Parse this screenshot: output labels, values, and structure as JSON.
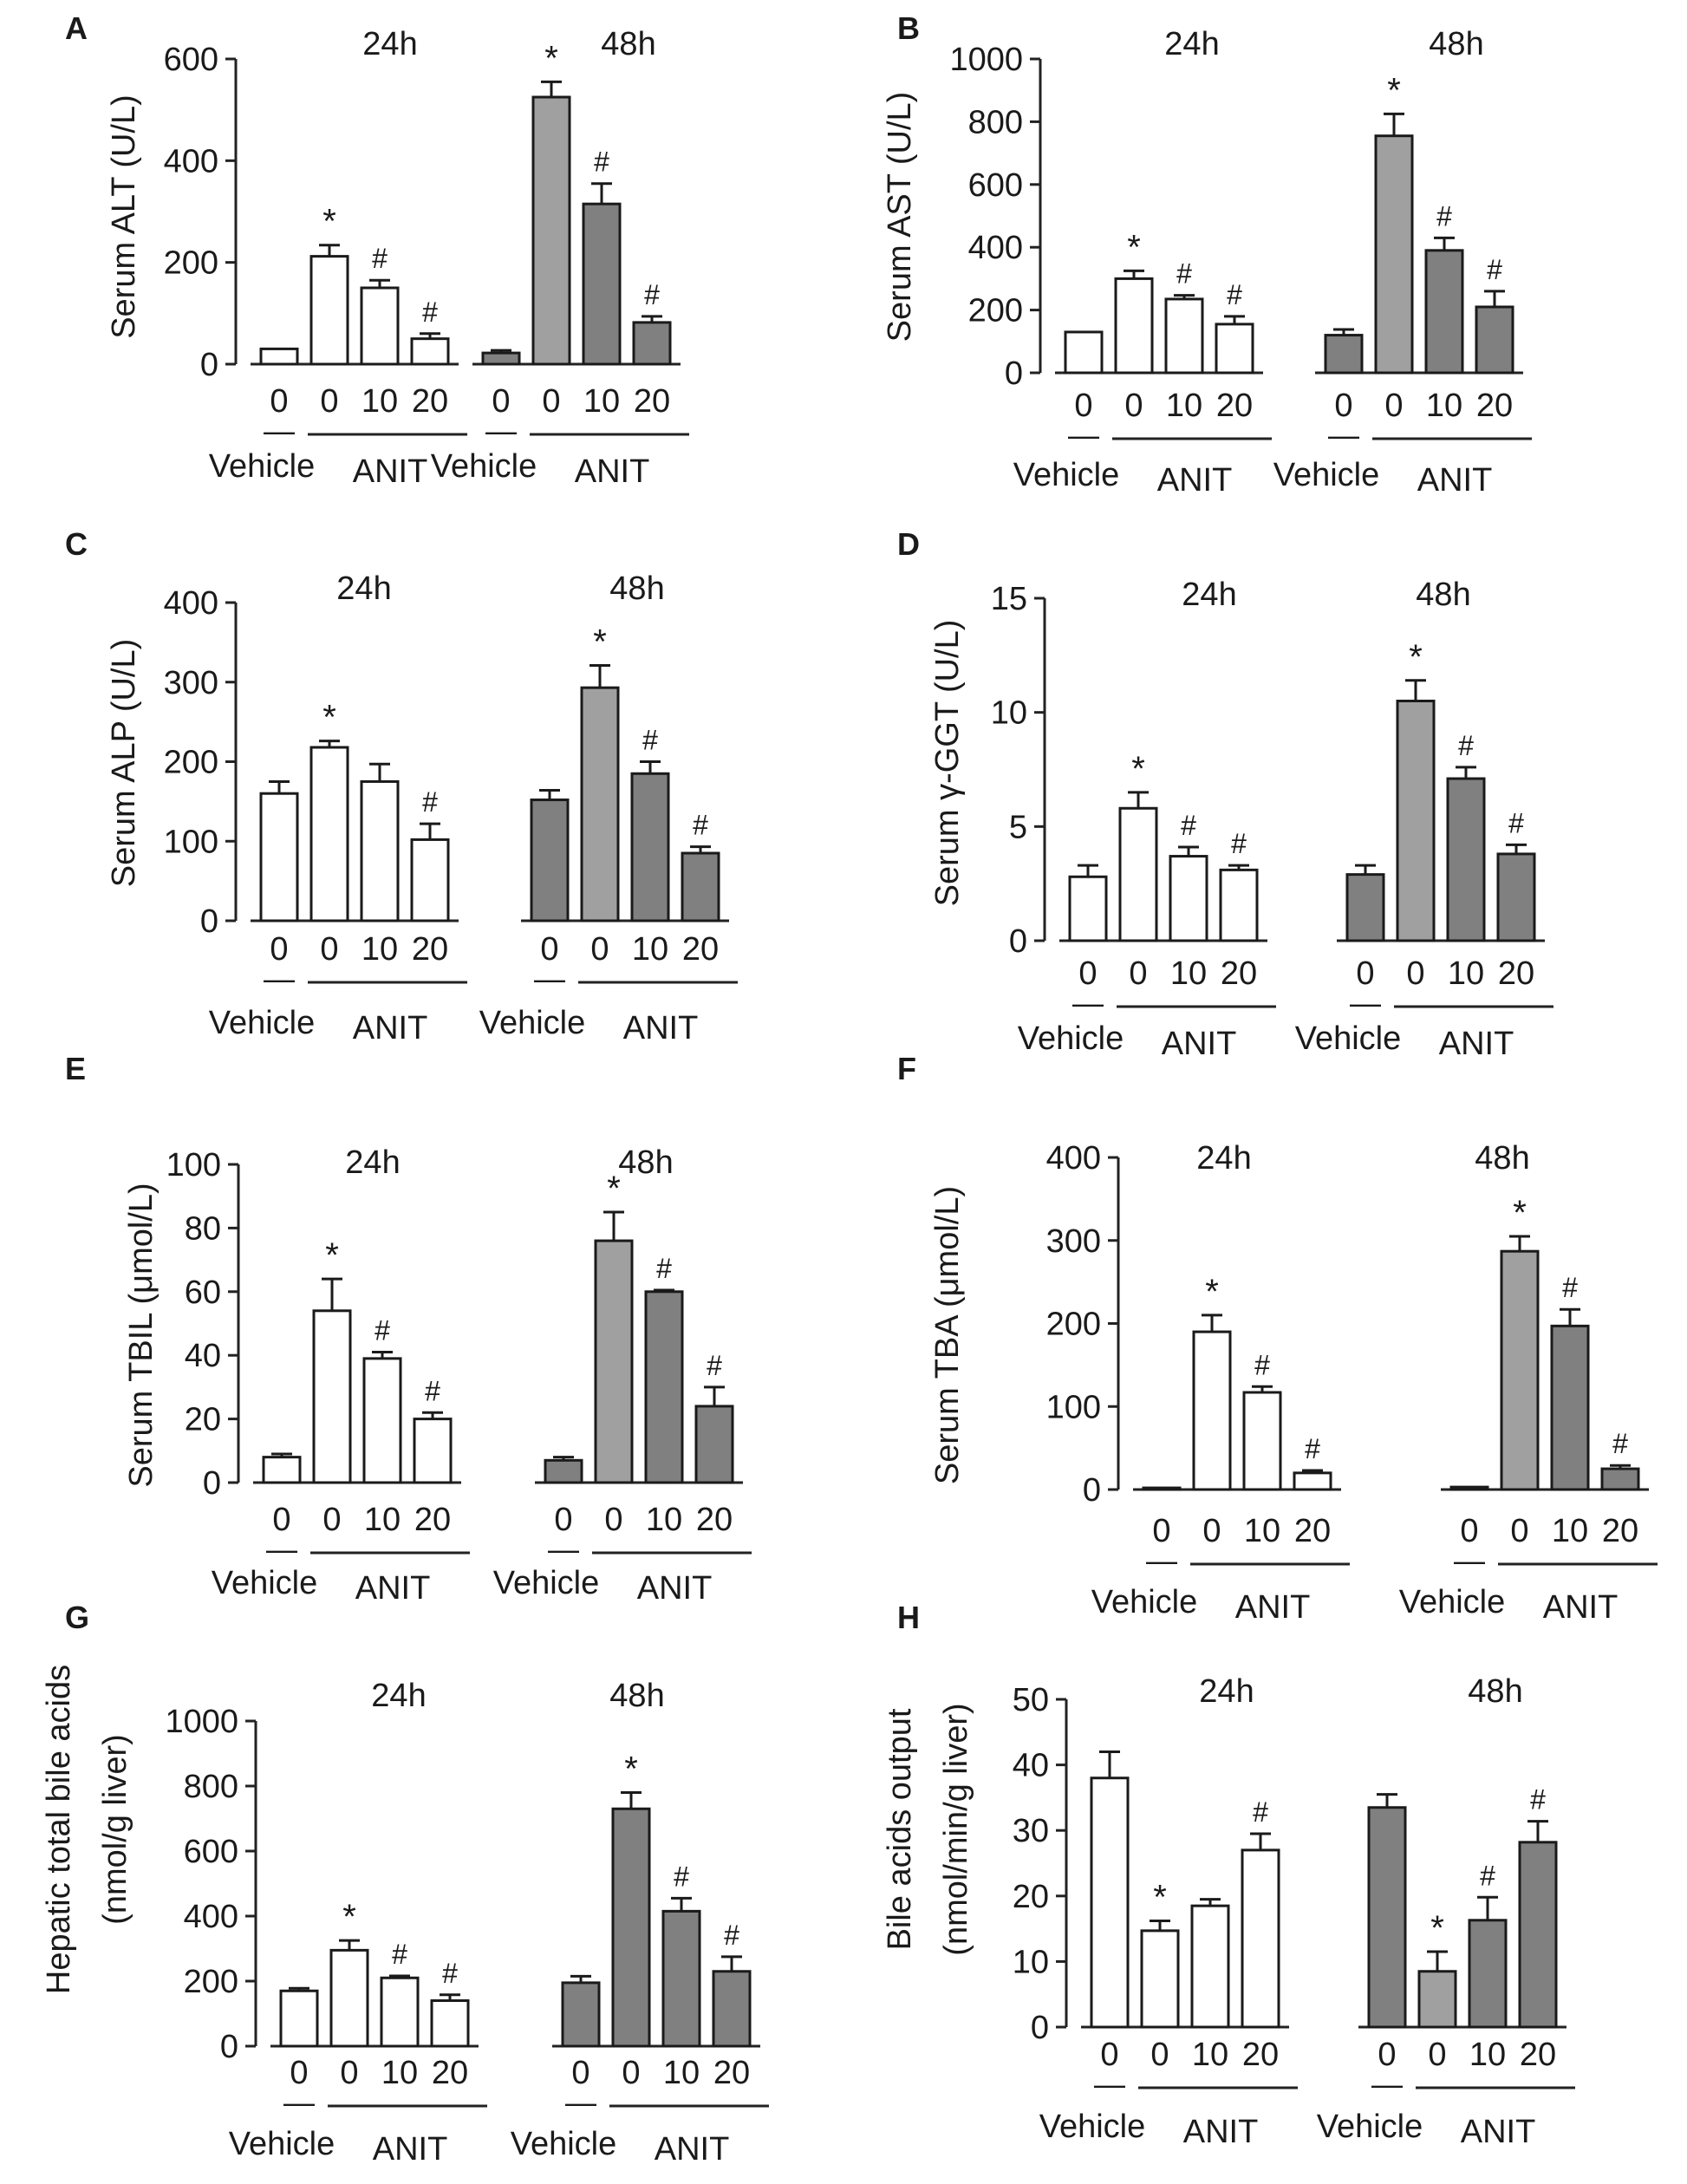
{
  "figure": {
    "chart_data": [
      {
        "type": "bar",
        "panel": "A",
        "ylabel": "Serum ALT (U/L)",
        "ylim": [
          0,
          600
        ],
        "yticks": [
          "0",
          "200",
          "400",
          "600"
        ],
        "groups": [
          {
            "title": "24h",
            "vehicle_label": "Vehicle",
            "treatment_label": "ANIT",
            "dose_labels": [
              "0",
              "0",
              "10",
              "20"
            ],
            "vehicle_mark": "—",
            "values": [
              30,
              212,
              150,
              50
            ],
            "errors": [
              0,
              22,
              15,
              10
            ],
            "annotations": [
              "",
              "*",
              "#",
              "#"
            ],
            "colors": [
              "#ffffff",
              "#ffffff",
              "#ffffff",
              "#ffffff"
            ]
          },
          {
            "title": "48h",
            "vehicle_label": "Vehicle",
            "treatment_label": "ANIT",
            "dose_labels": [
              "0",
              "0",
              "10",
              "20"
            ],
            "vehicle_mark": "—",
            "values": [
              22,
              525,
              315,
              82
            ],
            "errors": [
              5,
              30,
              40,
              12
            ],
            "annotations": [
              "",
              "*",
              "#",
              "#"
            ],
            "colors": [
              "#808080",
              "#a0a0a0",
              "#808080",
              "#808080"
            ]
          }
        ]
      },
      {
        "type": "bar",
        "panel": "B",
        "ylabel": "Serum AST (U/L)",
        "ylim": [
          0,
          1000
        ],
        "yticks": [
          "0",
          "200",
          "400",
          "600",
          "800",
          "1000"
        ],
        "groups": [
          {
            "title": "24h",
            "vehicle_label": "Vehicle",
            "treatment_label": "ANIT",
            "dose_labels": [
              "0",
              "0",
              "10",
              "20"
            ],
            "vehicle_mark": "—",
            "values": [
              130,
              300,
              235,
              155
            ],
            "errors": [
              0,
              25,
              12,
              25
            ],
            "annotations": [
              "",
              "*",
              "#",
              "#"
            ],
            "colors": [
              "#ffffff",
              "#ffffff",
              "#ffffff",
              "#ffffff"
            ]
          },
          {
            "title": "48h",
            "vehicle_label": "Vehicle",
            "treatment_label": "ANIT",
            "dose_labels": [
              "0",
              "0",
              "10",
              "20"
            ],
            "vehicle_mark": "—",
            "values": [
              120,
              755,
              390,
              210
            ],
            "errors": [
              18,
              70,
              40,
              50
            ],
            "annotations": [
              "",
              "*",
              "#",
              "#"
            ],
            "colors": [
              "#808080",
              "#a0a0a0",
              "#808080",
              "#808080"
            ]
          }
        ]
      },
      {
        "type": "bar",
        "panel": "C",
        "ylabel": "Serum ALP (U/L)",
        "ylim": [
          0,
          400
        ],
        "yticks": [
          "0",
          "100",
          "200",
          "300",
          "400"
        ],
        "groups": [
          {
            "title": "24h",
            "vehicle_label": "Vehicle",
            "treatment_label": "ANIT",
            "dose_labels": [
              "0",
              "0",
              "10",
              "20"
            ],
            "vehicle_mark": "—",
            "values": [
              160,
              218,
              175,
              102
            ],
            "errors": [
              15,
              8,
              22,
              20
            ],
            "annotations": [
              "",
              "*",
              "",
              "#"
            ],
            "colors": [
              "#ffffff",
              "#ffffff",
              "#ffffff",
              "#ffffff"
            ]
          },
          {
            "title": "48h",
            "vehicle_label": "Vehicle",
            "treatment_label": "ANIT",
            "dose_labels": [
              "0",
              "0",
              "10",
              "20"
            ],
            "vehicle_mark": "—",
            "values": [
              152,
              293,
              185,
              85
            ],
            "errors": [
              12,
              28,
              15,
              8
            ],
            "annotations": [
              "",
              "*",
              "#",
              "#"
            ],
            "colors": [
              "#808080",
              "#a0a0a0",
              "#808080",
              "#808080"
            ]
          }
        ]
      },
      {
        "type": "bar",
        "panel": "D",
        "ylabel": "Serum γ-GGT (U/L)",
        "ylim": [
          0,
          15
        ],
        "yticks": [
          "0",
          "5",
          "10",
          "15"
        ],
        "groups": [
          {
            "title": "24h",
            "vehicle_label": "Vehicle",
            "treatment_label": "ANIT",
            "dose_labels": [
              "0",
              "0",
              "10",
              "20"
            ],
            "vehicle_mark": "—",
            "values": [
              2.8,
              5.8,
              3.7,
              3.1
            ],
            "errors": [
              0.5,
              0.7,
              0.4,
              0.2
            ],
            "annotations": [
              "",
              "*",
              "#",
              "#"
            ],
            "colors": [
              "#ffffff",
              "#ffffff",
              "#ffffff",
              "#ffffff"
            ]
          },
          {
            "title": "48h",
            "vehicle_label": "Vehicle",
            "treatment_label": "ANIT",
            "dose_labels": [
              "0",
              "0",
              "10",
              "20"
            ],
            "vehicle_mark": "—",
            "values": [
              2.9,
              10.5,
              7.1,
              3.8
            ],
            "errors": [
              0.4,
              0.9,
              0.5,
              0.4
            ],
            "annotations": [
              "",
              "*",
              "#",
              "#"
            ],
            "colors": [
              "#808080",
              "#a0a0a0",
              "#808080",
              "#808080"
            ]
          }
        ]
      },
      {
        "type": "bar",
        "panel": "E",
        "ylabel": "Serum TBIL (μmol/L)",
        "ylim": [
          0,
          100
        ],
        "yticks": [
          "0",
          "20",
          "40",
          "60",
          "80",
          "100"
        ],
        "groups": [
          {
            "title": "24h",
            "vehicle_label": "Vehicle",
            "treatment_label": "ANIT",
            "dose_labels": [
              "0",
              "0",
              "10",
              "20"
            ],
            "vehicle_mark": "—",
            "values": [
              8,
              54,
              39,
              20
            ],
            "errors": [
              1,
              10,
              2,
              2
            ],
            "annotations": [
              "",
              "*",
              "#",
              "#"
            ],
            "colors": [
              "#ffffff",
              "#ffffff",
              "#ffffff",
              "#ffffff"
            ]
          },
          {
            "title": "48h",
            "vehicle_label": "Vehicle",
            "treatment_label": "ANIT",
            "dose_labels": [
              "0",
              "0",
              "10",
              "20"
            ],
            "vehicle_mark": "—",
            "values": [
              7,
              76,
              60,
              24
            ],
            "errors": [
              1,
              9,
              0.5,
              6
            ],
            "annotations": [
              "",
              "*",
              "#",
              "#"
            ],
            "colors": [
              "#808080",
              "#a0a0a0",
              "#808080",
              "#808080"
            ]
          }
        ]
      },
      {
        "type": "bar",
        "panel": "F",
        "ylabel": "Serum TBA (μmol/L)",
        "ylim": [
          0,
          400
        ],
        "yticks": [
          "0",
          "100",
          "200",
          "300",
          "400"
        ],
        "groups": [
          {
            "title": "24h",
            "vehicle_label": "Vehicle",
            "treatment_label": "ANIT",
            "dose_labels": [
              "0",
              "0",
              "10",
              "20"
            ],
            "vehicle_mark": "—",
            "values": [
              2,
              190,
              117,
              20
            ],
            "errors": [
              0,
              20,
              7,
              3
            ],
            "annotations": [
              "",
              "*",
              "#",
              "#"
            ],
            "colors": [
              "#ffffff",
              "#ffffff",
              "#ffffff",
              "#ffffff"
            ]
          },
          {
            "title": "48h",
            "vehicle_label": "Vehicle",
            "treatment_label": "ANIT",
            "dose_labels": [
              "0",
              "0",
              "10",
              "20"
            ],
            "vehicle_mark": "—",
            "values": [
              3,
              287,
              197,
              25
            ],
            "errors": [
              0,
              18,
              20,
              4
            ],
            "annotations": [
              "",
              "*",
              "#",
              "#"
            ],
            "colors": [
              "#808080",
              "#a0a0a0",
              "#808080",
              "#808080"
            ]
          }
        ]
      },
      {
        "type": "bar",
        "panel": "G",
        "ylabel": "Hepatic total bile acids",
        "ylabel2": "(nmol/g liver)",
        "ylim": [
          0,
          1000
        ],
        "yticks": [
          "0",
          "200",
          "400",
          "600",
          "800",
          "1000"
        ],
        "groups": [
          {
            "title": "24h",
            "vehicle_label": "Vehicle",
            "treatment_label": "ANIT",
            "dose_labels": [
              "0",
              "0",
              "10",
              "20"
            ],
            "vehicle_mark": "—",
            "values": [
              170,
              295,
              210,
              140
            ],
            "errors": [
              8,
              30,
              6,
              18
            ],
            "annotations": [
              "",
              "*",
              "#",
              "#"
            ],
            "colors": [
              "#ffffff",
              "#ffffff",
              "#ffffff",
              "#ffffff"
            ]
          },
          {
            "title": "48h",
            "vehicle_label": "Vehicle",
            "treatment_label": "ANIT",
            "dose_labels": [
              "0",
              "0",
              "10",
              "20"
            ],
            "vehicle_mark": "—",
            "values": [
              195,
              730,
              415,
              230
            ],
            "errors": [
              20,
              50,
              40,
              45
            ],
            "annotations": [
              "",
              "*",
              "#",
              "#"
            ],
            "colors": [
              "#808080",
              "#808080",
              "#808080",
              "#808080"
            ]
          }
        ]
      },
      {
        "type": "bar",
        "panel": "H",
        "ylabel": "Bile acids output",
        "ylabel2": "(nmol/min/g liver)",
        "ylim": [
          0,
          50
        ],
        "yticks": [
          "0",
          "10",
          "20",
          "30",
          "40",
          "50"
        ],
        "groups": [
          {
            "title": "24h",
            "vehicle_label": "Vehicle",
            "treatment_label": "ANIT",
            "dose_labels": [
              "0",
              "0",
              "10",
              "20"
            ],
            "vehicle_mark": "—",
            "values": [
              38,
              14.7,
              18.5,
              27
            ],
            "errors": [
              4,
              1.5,
              1,
              2.5
            ],
            "annotations": [
              "",
              "*",
              "",
              "#"
            ],
            "colors": [
              "#ffffff",
              "#ffffff",
              "#ffffff",
              "#ffffff"
            ]
          },
          {
            "title": "48h",
            "vehicle_label": "Vehicle",
            "treatment_label": "ANIT",
            "dose_labels": [
              "0",
              "0",
              "10",
              "20"
            ],
            "vehicle_mark": "—",
            "values": [
              33.5,
              8.5,
              16.3,
              28.2
            ],
            "errors": [
              2,
              3,
              3.5,
              3.2
            ],
            "annotations": [
              "",
              "*",
              "#",
              "#"
            ],
            "colors": [
              "#808080",
              "#a0a0a0",
              "#808080",
              "#808080"
            ]
          }
        ]
      }
    ]
  }
}
